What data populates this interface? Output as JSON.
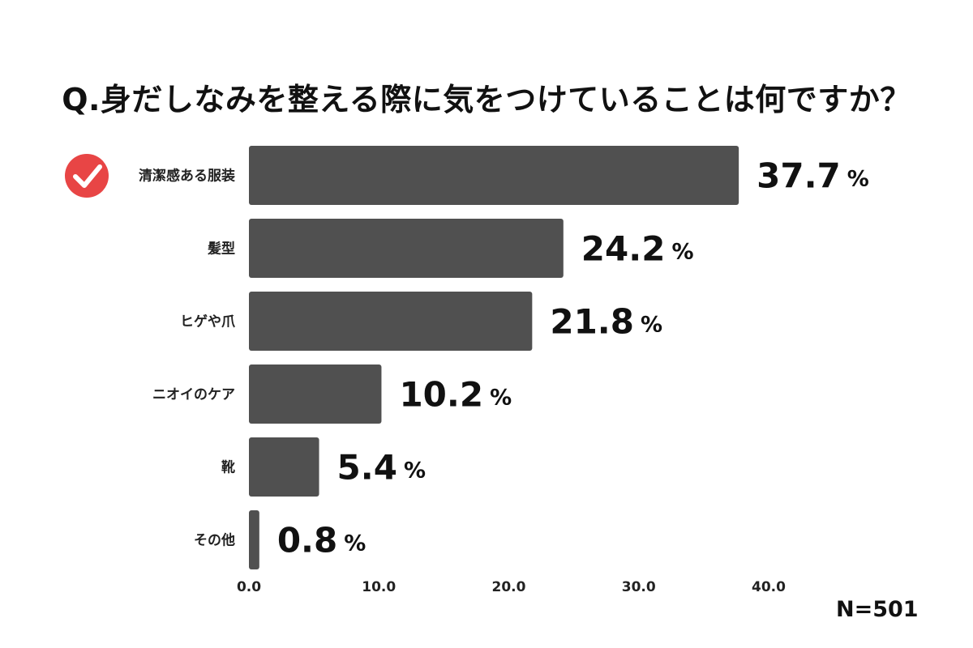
{
  "chart_data": {
    "type": "bar",
    "orientation": "horizontal",
    "title": "Q.身だしなみを整える際に気をつけていることは何ですか？",
    "categories": [
      "清潔感ある服装",
      "髪型",
      "ヒゲや爪",
      "ニオイのケア",
      "靴",
      "その他"
    ],
    "values": [
      37.7,
      24.2,
      21.8,
      10.2,
      5.4,
      0.8
    ],
    "value_labels": [
      "37.7",
      "24.2",
      "21.8",
      "10.2",
      "5.4",
      "0.8"
    ],
    "value_unit": "%",
    "xticks": [
      "0.0",
      "10.0",
      "20.0",
      "30.0",
      "40.0"
    ],
    "xlim": [
      0,
      40
    ],
    "grid": false,
    "highlight_category": "清潔感ある服装",
    "highlight_icon": "checkmark-circle-icon",
    "note": "N=501"
  },
  "colors": {
    "bar": "#505050",
    "highlight_icon": "#e84545",
    "text": "#111111"
  }
}
